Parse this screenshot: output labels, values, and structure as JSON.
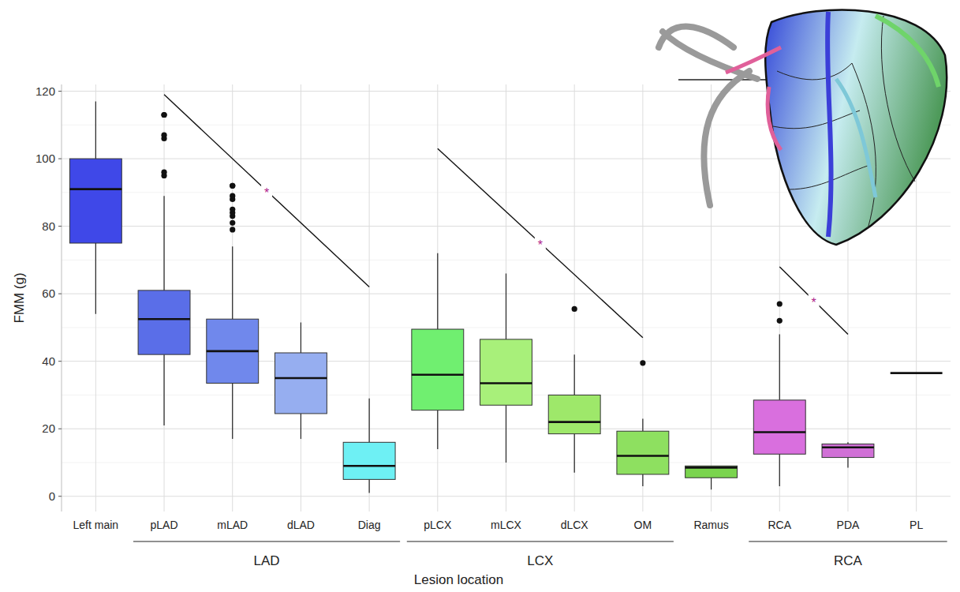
{
  "chart_data": {
    "type": "box",
    "x_label": "Lesion location",
    "y_label": "FMM (g)",
    "categories": [
      "Left main",
      "pLAD",
      "mLAD",
      "dLAD",
      "Diag",
      "pLCX",
      "mLCX",
      "dLCX",
      "OM",
      "Ramus",
      "RCA",
      "PDA",
      "PL"
    ],
    "colors": [
      "#3f48e8",
      "#5a6ee8",
      "#7088ec",
      "#96aef0",
      "#6ef0f4",
      "#70ef70",
      "#a8f07a",
      "#9ee86a",
      "#8ee060",
      "#7ad44e",
      "#d96fde",
      "#d070d6",
      "#e066e0"
    ],
    "boxes": [
      {
        "whisker_low": 54,
        "q1": 75,
        "median": 91,
        "q3": 100,
        "whisker_high": 117,
        "outliers": []
      },
      {
        "whisker_low": 21,
        "q1": 42,
        "median": 52.5,
        "q3": 61,
        "whisker_high": 89,
        "outliers": [
          95,
          96,
          106,
          107,
          113,
          113
        ]
      },
      {
        "whisker_low": 17,
        "q1": 33.5,
        "median": 43,
        "q3": 52.5,
        "whisker_high": 74,
        "outliers": [
          79,
          81,
          83,
          84,
          85,
          88,
          89,
          92,
          92
        ]
      },
      {
        "whisker_low": 17,
        "q1": 24.5,
        "median": 35,
        "q3": 42.5,
        "whisker_high": 51.5,
        "outliers": []
      },
      {
        "whisker_low": 1,
        "q1": 5,
        "median": 9,
        "q3": 16,
        "whisker_high": 29,
        "outliers": []
      },
      {
        "whisker_low": 14,
        "q1": 25.5,
        "median": 36,
        "q3": 49.5,
        "whisker_high": 72,
        "outliers": []
      },
      {
        "whisker_low": 10,
        "q1": 27,
        "median": 33.5,
        "q3": 46.5,
        "whisker_high": 66,
        "outliers": []
      },
      {
        "whisker_low": 7,
        "q1": 18.5,
        "median": 22,
        "q3": 30,
        "whisker_high": 42,
        "outliers": [
          55.5
        ]
      },
      {
        "whisker_low": 3,
        "q1": 6.5,
        "median": 12,
        "q3": 19.3,
        "whisker_high": 23,
        "outliers": [
          39.5
        ]
      },
      {
        "whisker_low": 2,
        "q1": 5.5,
        "median": 8.5,
        "q3": 9,
        "whisker_high": 9,
        "outliers": []
      },
      {
        "whisker_low": 3,
        "q1": 12.5,
        "median": 19,
        "q3": 28.5,
        "whisker_high": 48,
        "outliers": [
          52,
          57
        ]
      },
      {
        "whisker_low": 8.5,
        "q1": 11.5,
        "median": 14.5,
        "q3": 15.5,
        "whisker_high": 16,
        "outliers": []
      },
      {
        "whisker_low": 36.5,
        "q1": 36.5,
        "median": 36.5,
        "q3": 36.5,
        "whisker_high": 36.5,
        "outliers": []
      }
    ],
    "groups": [
      {
        "label": "LAD",
        "from": "pLAD",
        "to": "Diag"
      },
      {
        "label": "LCX",
        "from": "pLCX",
        "to": "OM"
      },
      {
        "label": "RCA",
        "from": "RCA",
        "to": "PL"
      }
    ],
    "significance": [
      {
        "from": "pLAD",
        "to": "Diag",
        "label": "*",
        "y_from": 119,
        "y_to": 62
      },
      {
        "from": "pLCX",
        "to": "OM",
        "label": "*",
        "y_from": 103,
        "y_to": 47
      },
      {
        "from": "RCA",
        "to": "PDA",
        "label": "*",
        "y_from": 68,
        "y_to": 48
      }
    ],
    "ylim": [
      -4.5,
      122
    ],
    "yticks": [
      0,
      20,
      40,
      60,
      80,
      100,
      120
    ],
    "grid": true
  }
}
